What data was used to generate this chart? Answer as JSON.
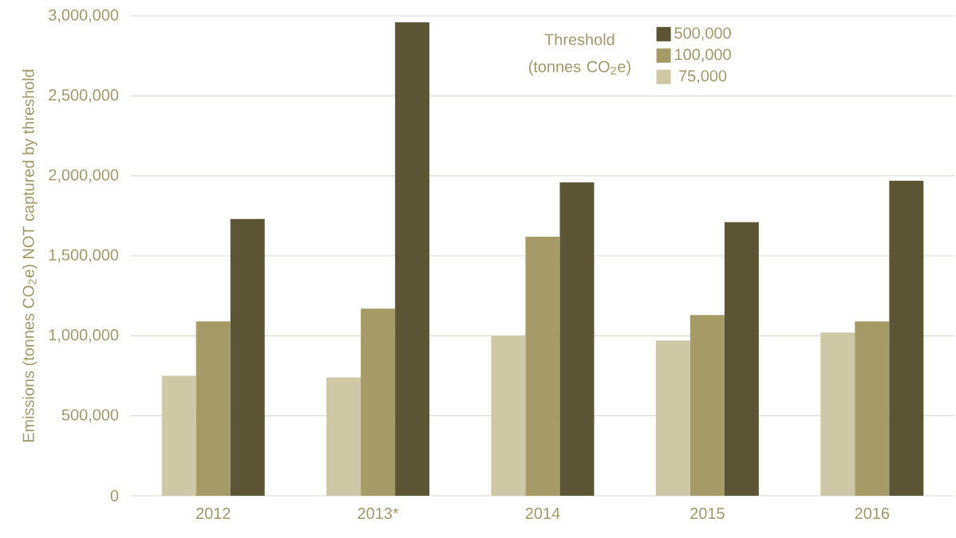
{
  "chart_data": {
    "type": "bar",
    "ylabel": "Emissions (tonnes CO$_{2}$e) NOT captured by threshold",
    "legend_title": "Threshold (tonnes CO$_{2}$e)",
    "categories": [
      "2012",
      "2013*",
      "2014",
      "2015",
      "2016"
    ],
    "series": [
      {
        "name": "75,000",
        "color": "#cfc8a6",
        "values": [
          750000,
          740000,
          1000000,
          970000,
          1020000
        ]
      },
      {
        "name": "100,000",
        "color": "#a59b66",
        "values": [
          1090000,
          1170000,
          1620000,
          1130000,
          1090000
        ]
      },
      {
        "name": "500,000",
        "color": "#5c5535",
        "values": [
          1730000,
          2960000,
          1960000,
          1710000,
          1970000
        ]
      }
    ],
    "ylim": [
      0,
      3000000
    ],
    "yticks": [
      {
        "value": 0,
        "label": "0"
      },
      {
        "value": 500000,
        "label": "500,000"
      },
      {
        "value": 1000000,
        "label": "1,000,000"
      },
      {
        "value": 1500000,
        "label": "1,500,000"
      },
      {
        "value": 2000000,
        "label": "2,000,000"
      },
      {
        "value": 2500000,
        "label": "2,500,000"
      },
      {
        "value": 3000000,
        "label": "3,000,000"
      }
    ],
    "grid": "y",
    "legend": "top"
  }
}
